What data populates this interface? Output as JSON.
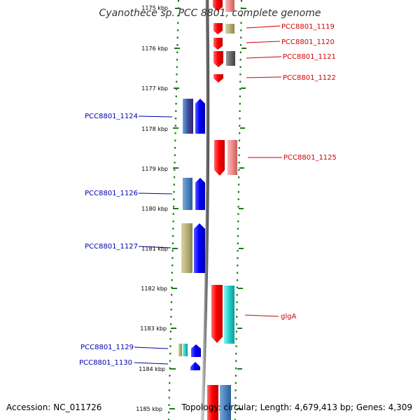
{
  "title": "Cyanothece sp. PCC 8801, complete genome",
  "ticks": [
    "1175 kbp",
    "1176 kbp",
    "1177 kbp",
    "1178 kbp",
    "1179 kbp",
    "1180 kbp",
    "1181 kbp",
    "1182 kbp",
    "1183 kbp",
    "1184 kbp",
    "1185 kbp"
  ],
  "reverse_strand_labels": [
    "PCC8801_1119",
    "PCC8801_1120",
    "PCC8801_1121",
    "PCC8801_1122",
    "PCC8801_1125",
    "glgA"
  ],
  "forward_strand_labels": [
    "PCC8801_1124",
    "PCC8801_1126",
    "PCC8801_1127",
    "PCC8801_1129",
    "PCC8801_1130"
  ],
  "footer": {
    "accession": "Accession: NC_011726",
    "summary": "Topology: circular; Length: 4,679,413 bp; Genes: 4,309"
  },
  "colors": {
    "forward_gene": "#0000ff",
    "reverse_gene": "#ff0000",
    "left_label": "#0000b0",
    "right_label": "#d00000",
    "track_dots": "#1a7a1a"
  }
}
